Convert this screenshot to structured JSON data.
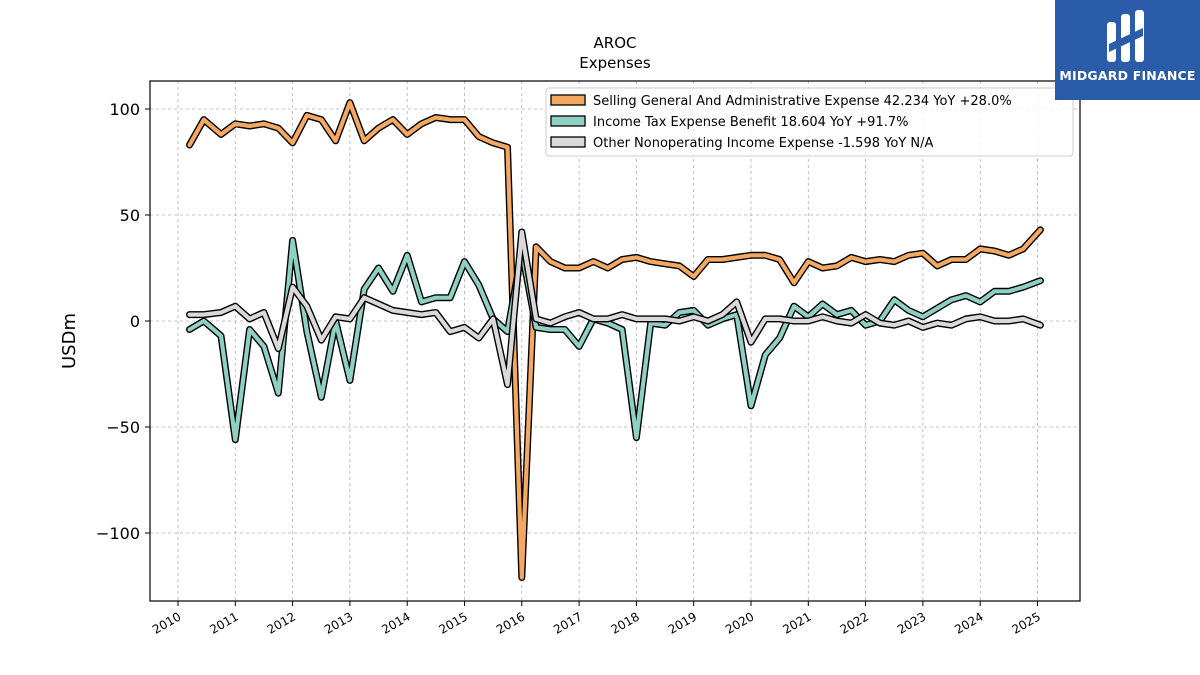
{
  "chart_data": {
    "type": "line",
    "title": "AROC",
    "subtitle": "Expenses",
    "ylabel": "USDm",
    "xlabel": "",
    "ylim": [
      -132,
      112
    ],
    "xlim": [
      2009.5,
      2025.75
    ],
    "yticks": [
      100,
      50,
      0,
      -50,
      -100
    ],
    "ytick_labels": [
      "100",
      "50",
      "0",
      "−50",
      "−100"
    ],
    "xticks": [
      2010,
      2011,
      2012,
      2013,
      2014,
      2015,
      2016,
      2017,
      2018,
      2019,
      2020,
      2021,
      2022,
      2023,
      2024,
      2025
    ],
    "xtick_labels": [
      "2010",
      "2011",
      "2012",
      "2013",
      "2014",
      "2015",
      "2016",
      "2017",
      "2018",
      "2019",
      "2020",
      "2021",
      "2022",
      "2023",
      "2024",
      "2025"
    ],
    "grid": true,
    "legend_position": "top-right",
    "series": [
      {
        "name": "Selling General And Administrative Expense  42.234 YoY +28.0%",
        "color": "#f4a862",
        "points": [
          [
            2010.2,
            83
          ],
          [
            2010.45,
            95
          ],
          [
            2010.75,
            88
          ],
          [
            2011.0,
            93
          ],
          [
            2011.25,
            92
          ],
          [
            2011.5,
            93
          ],
          [
            2011.75,
            91
          ],
          [
            2012.0,
            84
          ],
          [
            2012.25,
            97
          ],
          [
            2012.5,
            95
          ],
          [
            2012.75,
            85
          ],
          [
            2013.0,
            103
          ],
          [
            2013.25,
            85
          ],
          [
            2013.5,
            91
          ],
          [
            2013.75,
            95
          ],
          [
            2014.0,
            88
          ],
          [
            2014.25,
            93
          ],
          [
            2014.5,
            96
          ],
          [
            2014.75,
            95
          ],
          [
            2015.0,
            95
          ],
          [
            2015.25,
            87
          ],
          [
            2015.5,
            84
          ],
          [
            2015.75,
            82
          ],
          [
            2016.0,
            -121
          ],
          [
            2016.25,
            35
          ],
          [
            2016.5,
            28
          ],
          [
            2016.75,
            25
          ],
          [
            2017.0,
            25
          ],
          [
            2017.25,
            28
          ],
          [
            2017.5,
            25
          ],
          [
            2017.75,
            29
          ],
          [
            2018.0,
            30
          ],
          [
            2018.25,
            28
          ],
          [
            2018.5,
            27
          ],
          [
            2018.75,
            26
          ],
          [
            2019.0,
            21
          ],
          [
            2019.25,
            29
          ],
          [
            2019.5,
            29
          ],
          [
            2019.75,
            30
          ],
          [
            2020.0,
            31
          ],
          [
            2020.25,
            31
          ],
          [
            2020.5,
            29
          ],
          [
            2020.75,
            18
          ],
          [
            2021.0,
            28
          ],
          [
            2021.25,
            25
          ],
          [
            2021.5,
            26
          ],
          [
            2021.75,
            30
          ],
          [
            2022.0,
            28
          ],
          [
            2022.25,
            29
          ],
          [
            2022.5,
            28
          ],
          [
            2022.75,
            31
          ],
          [
            2023.0,
            32
          ],
          [
            2023.25,
            26
          ],
          [
            2023.5,
            29
          ],
          [
            2023.75,
            29
          ],
          [
            2024.0,
            34
          ],
          [
            2024.25,
            33
          ],
          [
            2024.5,
            31
          ],
          [
            2024.75,
            34
          ],
          [
            2025.05,
            43
          ]
        ]
      },
      {
        "name": "Income Tax Expense Benefit  18.604 YoY +91.7%",
        "color": "#8fd0c4",
        "points": [
          [
            2010.2,
            -4
          ],
          [
            2010.45,
            0
          ],
          [
            2010.75,
            -7
          ],
          [
            2011.0,
            -56
          ],
          [
            2011.25,
            -4
          ],
          [
            2011.5,
            -12
          ],
          [
            2011.75,
            -34
          ],
          [
            2012.0,
            38
          ],
          [
            2012.25,
            -5
          ],
          [
            2012.5,
            -36
          ],
          [
            2012.75,
            0
          ],
          [
            2013.0,
            -28
          ],
          [
            2013.25,
            15
          ],
          [
            2013.5,
            25
          ],
          [
            2013.75,
            14
          ],
          [
            2014.0,
            31
          ],
          [
            2014.25,
            9
          ],
          [
            2014.5,
            11
          ],
          [
            2014.75,
            11
          ],
          [
            2015.0,
            28
          ],
          [
            2015.25,
            17
          ],
          [
            2015.5,
            1
          ],
          [
            2015.75,
            -5
          ],
          [
            2016.0,
            33
          ],
          [
            2016.25,
            -3
          ],
          [
            2016.5,
            -4
          ],
          [
            2016.75,
            -4
          ],
          [
            2017.0,
            -12
          ],
          [
            2017.25,
            1
          ],
          [
            2017.5,
            -1
          ],
          [
            2017.75,
            -4
          ],
          [
            2018.0,
            -55
          ],
          [
            2018.25,
            -1
          ],
          [
            2018.5,
            -2
          ],
          [
            2018.75,
            4
          ],
          [
            2019.0,
            5
          ],
          [
            2019.25,
            -2
          ],
          [
            2019.5,
            1
          ],
          [
            2019.75,
            3
          ],
          [
            2020.0,
            -40
          ],
          [
            2020.25,
            -16
          ],
          [
            2020.5,
            -8
          ],
          [
            2020.75,
            7
          ],
          [
            2021.0,
            2
          ],
          [
            2021.25,
            8
          ],
          [
            2021.5,
            3
          ],
          [
            2021.75,
            5
          ],
          [
            2022.0,
            -2
          ],
          [
            2022.25,
            0
          ],
          [
            2022.5,
            10
          ],
          [
            2022.75,
            5
          ],
          [
            2023.0,
            2
          ],
          [
            2023.25,
            6
          ],
          [
            2023.5,
            10
          ],
          [
            2023.75,
            12
          ],
          [
            2024.0,
            9
          ],
          [
            2024.25,
            14
          ],
          [
            2024.5,
            14
          ],
          [
            2024.75,
            16
          ],
          [
            2025.05,
            19
          ]
        ]
      },
      {
        "name": "Other Nonoperating Income Expense  -1.598 YoY N/A",
        "color": "#d9d9d9",
        "points": [
          [
            2010.2,
            3
          ],
          [
            2010.45,
            3
          ],
          [
            2010.75,
            4
          ],
          [
            2011.0,
            7
          ],
          [
            2011.25,
            1
          ],
          [
            2011.5,
            4
          ],
          [
            2011.75,
            -13
          ],
          [
            2012.0,
            16
          ],
          [
            2012.25,
            7
          ],
          [
            2012.5,
            -9
          ],
          [
            2012.75,
            2
          ],
          [
            2013.0,
            1
          ],
          [
            2013.25,
            11
          ],
          [
            2013.5,
            8
          ],
          [
            2013.75,
            5
          ],
          [
            2014.0,
            4
          ],
          [
            2014.25,
            3
          ],
          [
            2014.5,
            4
          ],
          [
            2014.75,
            -5
          ],
          [
            2015.0,
            -3
          ],
          [
            2015.25,
            -8
          ],
          [
            2015.5,
            1
          ],
          [
            2015.75,
            -30
          ],
          [
            2016.0,
            42
          ],
          [
            2016.25,
            1
          ],
          [
            2016.5,
            -1
          ],
          [
            2016.75,
            2
          ],
          [
            2017.0,
            4
          ],
          [
            2017.25,
            1
          ],
          [
            2017.5,
            1
          ],
          [
            2017.75,
            3
          ],
          [
            2018.0,
            1
          ],
          [
            2018.25,
            1
          ],
          [
            2018.5,
            1
          ],
          [
            2018.75,
            0
          ],
          [
            2019.0,
            2
          ],
          [
            2019.25,
            0
          ],
          [
            2019.5,
            3
          ],
          [
            2019.75,
            9
          ],
          [
            2020.0,
            -10
          ],
          [
            2020.25,
            1
          ],
          [
            2020.5,
            1
          ],
          [
            2020.75,
            0
          ],
          [
            2021.0,
            0
          ],
          [
            2021.25,
            2
          ],
          [
            2021.5,
            0
          ],
          [
            2021.75,
            -1
          ],
          [
            2022.0,
            3
          ],
          [
            2022.25,
            -1
          ],
          [
            2022.5,
            -2
          ],
          [
            2022.75,
            0
          ],
          [
            2023.0,
            -3
          ],
          [
            2023.25,
            -1
          ],
          [
            2023.5,
            -2
          ],
          [
            2023.75,
            1
          ],
          [
            2024.0,
            2
          ],
          [
            2024.25,
            0
          ],
          [
            2024.5,
            0
          ],
          [
            2024.75,
            1
          ],
          [
            2025.05,
            -2
          ]
        ]
      }
    ]
  },
  "logo": {
    "text": "MIDGARD FINANCE",
    "background": "#2a5caa"
  }
}
